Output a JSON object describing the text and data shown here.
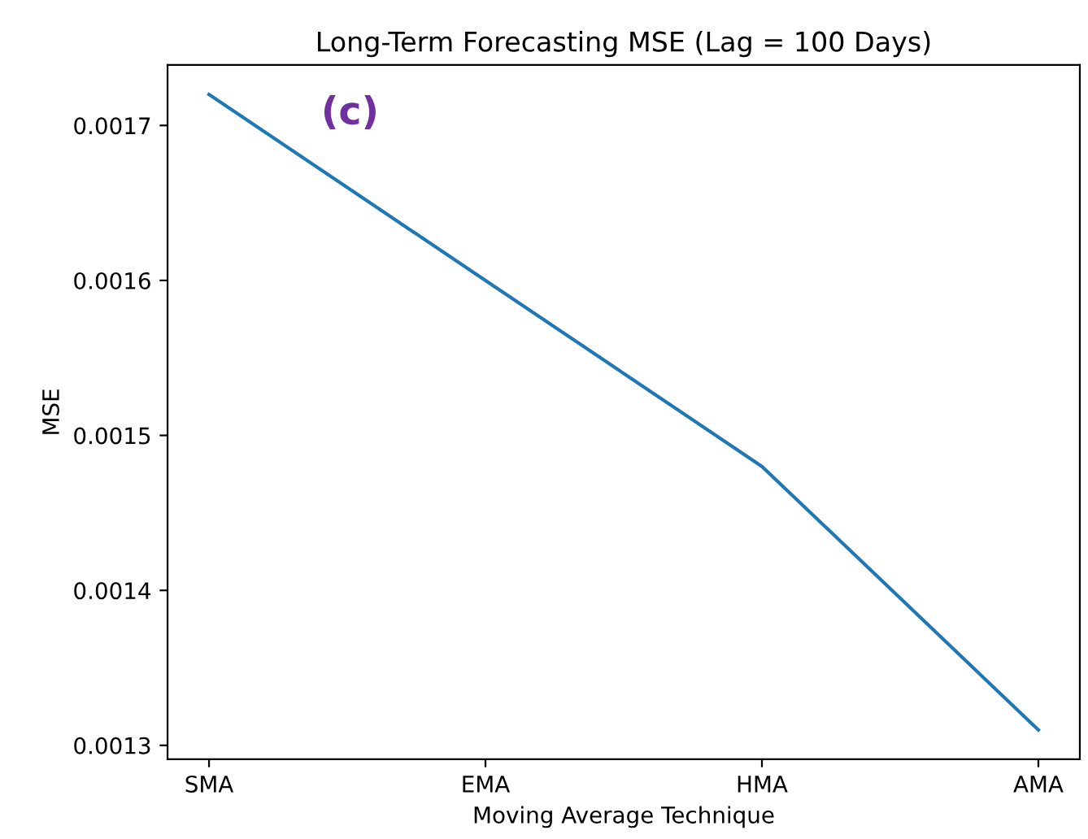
{
  "chart_data": {
    "type": "line",
    "title": "Long-Term Forecasting MSE (Lag = 100 Days)",
    "xlabel": "Moving Average Technique",
    "ylabel": "MSE",
    "categories": [
      "SMA",
      "EMA",
      "HMA",
      "AMA"
    ],
    "series": [
      {
        "color": "#1f77b4",
        "values": [
          0.00172,
          0.0016,
          0.00148,
          0.00131
        ]
      }
    ],
    "ylim": [
      0.001291,
      0.001739
    ],
    "yticks": [
      0.0013,
      0.0014,
      0.0015,
      0.0016,
      0.0017
    ],
    "annotations": [
      "(c)"
    ],
    "grid": false,
    "legend": false
  }
}
